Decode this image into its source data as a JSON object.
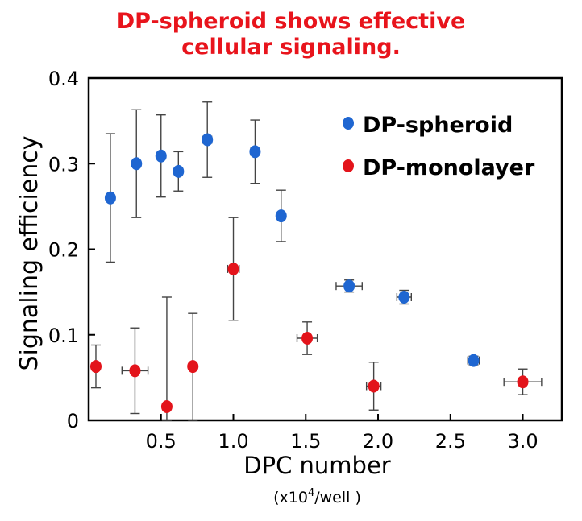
{
  "chart_data": {
    "type": "scatter",
    "title": "DP-spheroid shows effective",
    "subtitle": "cellular signaling.",
    "xlabel": "DPC number",
    "xunit_prefix": "(x10",
    "xunit_sup": "4",
    "xunit_suffix": "/well )",
    "ylabel": "Signaling efficiency",
    "xlim": [
      0.0,
      3.27
    ],
    "ylim": [
      0,
      0.4
    ],
    "xticks": [
      0.5,
      1.0,
      1.5,
      2.0,
      2.5,
      3.0
    ],
    "xtick_labels": [
      "0.5",
      "1.0",
      "1.5",
      "2.0",
      "2.5",
      "3.0"
    ],
    "yticks": [
      0,
      0.1,
      0.2,
      0.3,
      0.4
    ],
    "ytick_labels": [
      "0",
      "0.1",
      "0.2",
      "0.3",
      "0.4"
    ],
    "grid": false,
    "legend_position": "top-right",
    "series": [
      {
        "name": "DP-spheroid",
        "color": "#1f66d1",
        "points": [
          {
            "x": 0.15,
            "y": 0.26,
            "yerr_lo": 0.075,
            "yerr_hi": 0.075,
            "xerr": 0.0
          },
          {
            "x": 0.33,
            "y": 0.3,
            "yerr_lo": 0.063,
            "yerr_hi": 0.063,
            "xerr": 0.0
          },
          {
            "x": 0.5,
            "y": 0.309,
            "yerr_lo": 0.048,
            "yerr_hi": 0.048,
            "xerr": 0.0
          },
          {
            "x": 0.62,
            "y": 0.291,
            "yerr_lo": 0.023,
            "yerr_hi": 0.023,
            "xerr": 0.0
          },
          {
            "x": 0.82,
            "y": 0.328,
            "yerr_lo": 0.044,
            "yerr_hi": 0.044,
            "xerr": 0.03
          },
          {
            "x": 1.15,
            "y": 0.314,
            "yerr_lo": 0.037,
            "yerr_hi": 0.037,
            "xerr": 0.03
          },
          {
            "x": 1.33,
            "y": 0.239,
            "yerr_lo": 0.03,
            "yerr_hi": 0.03,
            "xerr": 0.0
          },
          {
            "x": 1.8,
            "y": 0.157,
            "yerr_lo": 0.007,
            "yerr_hi": 0.007,
            "xerr": 0.09
          },
          {
            "x": 2.18,
            "y": 0.144,
            "yerr_lo": 0.008,
            "yerr_hi": 0.008,
            "xerr": 0.05
          },
          {
            "x": 2.66,
            "y": 0.07,
            "yerr_lo": 0.005,
            "yerr_hi": 0.005,
            "xerr": 0.04
          }
        ]
      },
      {
        "name": "DP-monolayer",
        "color": "#e3141b",
        "points": [
          {
            "x": 0.05,
            "y": 0.063,
            "yerr_lo": 0.025,
            "yerr_hi": 0.025,
            "xerr": 0.0
          },
          {
            "x": 0.32,
            "y": 0.058,
            "yerr_lo": 0.05,
            "yerr_hi": 0.05,
            "xerr": 0.09
          },
          {
            "x": 0.54,
            "y": 0.016,
            "yerr_lo": 0.016,
            "yerr_hi": 0.128,
            "xerr": 0.0
          },
          {
            "x": 0.72,
            "y": 0.063,
            "yerr_lo": 0.063,
            "yerr_hi": 0.062,
            "xerr": 0.0
          },
          {
            "x": 1.0,
            "y": 0.177,
            "yerr_lo": 0.06,
            "yerr_hi": 0.06,
            "xerr": 0.04
          },
          {
            "x": 1.51,
            "y": 0.096,
            "yerr_lo": 0.019,
            "yerr_hi": 0.019,
            "xerr": 0.07
          },
          {
            "x": 1.97,
            "y": 0.04,
            "yerr_lo": 0.028,
            "yerr_hi": 0.028,
            "xerr": 0.05
          },
          {
            "x": 3.0,
            "y": 0.045,
            "yerr_lo": 0.015,
            "yerr_hi": 0.015,
            "xerr": 0.13
          }
        ]
      }
    ]
  }
}
